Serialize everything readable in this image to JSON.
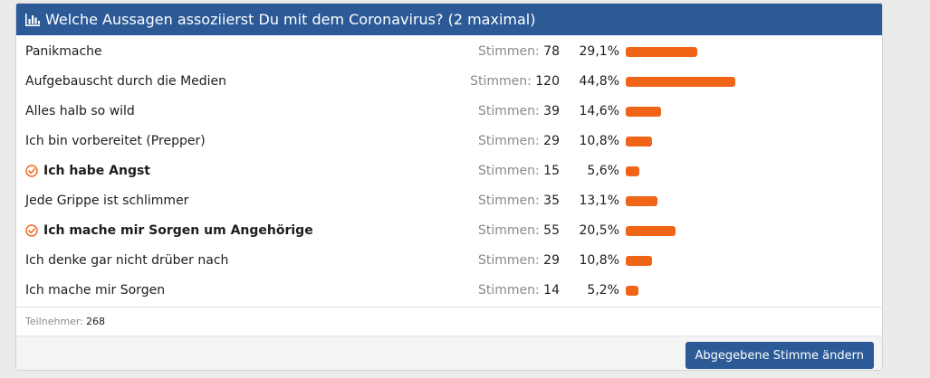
{
  "poll": {
    "title": "Welche Aussagen assoziierst Du mit dem Coronavirus? (2 maximal)",
    "header_icon": "bar-chart-icon",
    "votes_word": "Stimmen:",
    "bar_color": "#f06417",
    "header_color": "#2b5a97",
    "options": [
      {
        "label": "Panikmache",
        "votes": "78",
        "percent": "29,1%",
        "share": 29.1,
        "voted": false
      },
      {
        "label": "Aufgebauscht durch die Medien",
        "votes": "120",
        "percent": "44,8%",
        "share": 44.8,
        "voted": false
      },
      {
        "label": "Alles halb so wild",
        "votes": "39",
        "percent": "14,6%",
        "share": 14.6,
        "voted": false
      },
      {
        "label": "Ich bin vorbereitet (Prepper)",
        "votes": "29",
        "percent": "10,8%",
        "share": 10.8,
        "voted": false
      },
      {
        "label": "Ich habe Angst",
        "votes": "15",
        "percent": "5,6%",
        "share": 5.6,
        "voted": true
      },
      {
        "label": "Jede Grippe ist schlimmer",
        "votes": "35",
        "percent": "13,1%",
        "share": 13.1,
        "voted": false
      },
      {
        "label": "Ich mache mir Sorgen um Angehörige",
        "votes": "55",
        "percent": "20,5%",
        "share": 20.5,
        "voted": true
      },
      {
        "label": "Ich denke gar nicht drüber nach",
        "votes": "29",
        "percent": "10,8%",
        "share": 10.8,
        "voted": false
      },
      {
        "label": "Ich mache mir Sorgen",
        "votes": "14",
        "percent": "5,2%",
        "share": 5.2,
        "voted": false
      }
    ],
    "participants_label": "Teilnehmer:",
    "participants_count": "268",
    "change_vote_label": "Abgegebene Stimme ändern"
  }
}
